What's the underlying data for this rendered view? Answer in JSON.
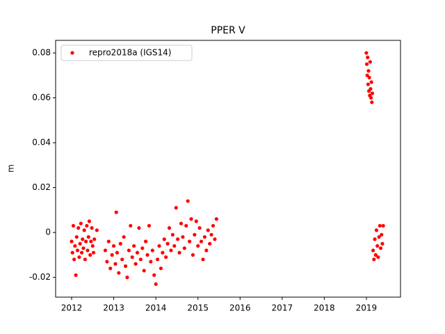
{
  "chart_data": {
    "type": "scatter",
    "title": "PPER V",
    "y_label": "m",
    "xlim": [
      2011.62,
      2019.81
    ],
    "xticks": [
      2012,
      2013,
      2014,
      2015,
      2016,
      2017,
      2018,
      2019
    ],
    "ylim": [
      -0.0288,
      0.0856
    ],
    "yticks": [
      -0.02,
      0.0,
      0.02,
      0.04,
      0.06,
      0.08
    ],
    "legend_position": "upper left",
    "grid": false,
    "series": [
      {
        "name": "repro2018a (IGS14)",
        "color": "#ff0000",
        "x": [
          2012.0,
          2012.02,
          2012.04,
          2012.06,
          2012.08,
          2012.1,
          2012.12,
          2012.14,
          2012.16,
          2012.18,
          2012.2,
          2012.22,
          2012.24,
          2012.26,
          2012.28,
          2012.3,
          2012.32,
          2012.34,
          2012.36,
          2012.38,
          2012.4,
          2012.42,
          2012.44,
          2012.46,
          2012.48,
          2012.5,
          2012.52,
          2012.54,
          2012.6,
          2012.8,
          2012.84,
          2012.88,
          2012.92,
          2012.96,
          2013.0,
          2013.04,
          2013.06,
          2013.08,
          2013.12,
          2013.16,
          2013.2,
          2013.24,
          2013.28,
          2013.32,
          2013.36,
          2013.4,
          2013.44,
          2013.48,
          2013.52,
          2013.56,
          2013.6,
          2013.64,
          2013.68,
          2013.72,
          2013.76,
          2013.8,
          2013.84,
          2013.88,
          2013.92,
          2013.96,
          2014.0,
          2014.04,
          2014.08,
          2014.12,
          2014.16,
          2014.2,
          2014.24,
          2014.28,
          2014.32,
          2014.36,
          2014.4,
          2014.44,
          2014.48,
          2014.52,
          2014.56,
          2014.6,
          2014.64,
          2014.68,
          2014.72,
          2014.76,
          2014.8,
          2014.84,
          2014.88,
          2014.92,
          2014.96,
          2015.0,
          2015.04,
          2015.08,
          2015.12,
          2015.16,
          2015.2,
          2015.24,
          2015.28,
          2015.32,
          2015.36,
          2015.4,
          2015.44,
          2019.0,
          2019.01,
          2019.02,
          2019.03,
          2019.04,
          2019.05,
          2019.06,
          2019.07,
          2019.08,
          2019.09,
          2019.1,
          2019.11,
          2019.12,
          2019.13,
          2019.14,
          2019.16,
          2019.18,
          2019.2,
          2019.22,
          2019.24,
          2019.26,
          2019.28,
          2019.3,
          2019.32,
          2019.34,
          2019.36,
          2019.38,
          2019.4
        ],
        "values": [
          -0.004,
          -0.009,
          0.003,
          -0.012,
          -0.006,
          -0.019,
          -0.002,
          -0.008,
          0.002,
          -0.011,
          -0.005,
          0.004,
          -0.009,
          -0.003,
          -0.007,
          0.001,
          -0.012,
          -0.004,
          0.003,
          -0.008,
          -0.002,
          0.005,
          -0.01,
          -0.004,
          0.002,
          -0.006,
          -0.009,
          -0.003,
          0.001,
          -0.008,
          -0.013,
          -0.004,
          -0.016,
          -0.01,
          -0.006,
          -0.014,
          0.009,
          -0.009,
          -0.018,
          -0.005,
          -0.012,
          -0.002,
          -0.015,
          -0.02,
          -0.008,
          0.003,
          -0.011,
          -0.006,
          -0.014,
          -0.009,
          0.002,
          -0.012,
          -0.007,
          -0.017,
          -0.004,
          -0.01,
          0.003,
          -0.013,
          -0.008,
          -0.019,
          -0.023,
          -0.012,
          -0.006,
          -0.016,
          -0.009,
          -0.003,
          -0.011,
          -0.005,
          0.002,
          -0.008,
          -0.001,
          -0.006,
          0.011,
          -0.003,
          -0.009,
          0.004,
          -0.002,
          -0.007,
          0.003,
          0.014,
          -0.004,
          0.006,
          -0.01,
          -0.001,
          0.005,
          -0.006,
          0.002,
          -0.004,
          -0.012,
          -0.002,
          -0.008,
          0.001,
          -0.005,
          -0.001,
          0.003,
          -0.003,
          0.006,
          0.08,
          0.075,
          0.07,
          0.078,
          0.066,
          0.072,
          0.063,
          0.069,
          0.061,
          0.076,
          0.064,
          0.06,
          0.067,
          0.058,
          0.062,
          -0.008,
          -0.012,
          -0.003,
          -0.01,
          0.001,
          -0.006,
          -0.011,
          -0.002,
          0.003,
          -0.007,
          -0.001,
          -0.005,
          0.003
        ]
      }
    ]
  }
}
